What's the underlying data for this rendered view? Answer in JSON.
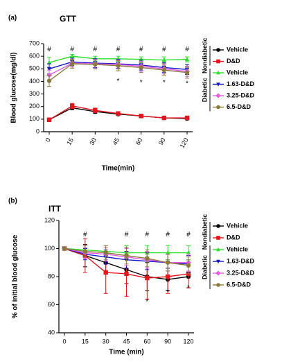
{
  "chart_data": [
    {
      "type": "line",
      "panel": "(a)",
      "title": "GTT",
      "x_label": "Time(min)",
      "y_label": "Blood glucose(mg/dl)",
      "categories": [
        "0",
        "15",
        "30",
        "45",
        "60",
        "90",
        "120"
      ],
      "ylim": [
        0,
        700
      ],
      "yticks": [
        0,
        100,
        200,
        300,
        400,
        500,
        600,
        700
      ],
      "legend_groups": [
        "Nondiabetic",
        "Diabetic"
      ],
      "series": [
        {
          "name": "Vehicle",
          "color": "#000000",
          "marker": "circle",
          "values": [
            95,
            190,
            160,
            140,
            125,
            110,
            105
          ],
          "errors": [
            8,
            15,
            15,
            12,
            12,
            8,
            10
          ]
        },
        {
          "name": "D&D",
          "color": "#e8141c",
          "marker": "square",
          "values": [
            95,
            205,
            170,
            145,
            125,
            110,
            110
          ],
          "errors": [
            8,
            20,
            18,
            15,
            12,
            8,
            12
          ]
        },
        {
          "name": "Vehicle",
          "color": "#2be02b",
          "marker": "triangle-up",
          "values": [
            550,
            600,
            580,
            580,
            575,
            570,
            575
          ],
          "errors": [
            40,
            15,
            20,
            20,
            20,
            25,
            20
          ]
        },
        {
          "name": "1.63-D&D",
          "color": "#1414c8",
          "marker": "triangle-down",
          "values": [
            500,
            555,
            545,
            540,
            530,
            510,
            495
          ],
          "errors": [
            40,
            30,
            35,
            35,
            40,
            40,
            40
          ]
        },
        {
          "name": "3.25-D&D",
          "color": "#e65ce6",
          "marker": "diamond",
          "values": [
            450,
            545,
            540,
            535,
            520,
            500,
            480
          ],
          "errors": [
            40,
            30,
            35,
            35,
            40,
            40,
            40
          ]
        },
        {
          "name": "6.5-D&D",
          "color": "#8c7a3c",
          "marker": "circle",
          "values": [
            405,
            540,
            535,
            525,
            510,
            490,
            470
          ],
          "errors": [
            45,
            35,
            35,
            40,
            40,
            40,
            45
          ]
        }
      ],
      "annotations": [
        {
          "text": "#",
          "x": "0",
          "y": 655
        },
        {
          "text": "#",
          "x": "15",
          "y": 655
        },
        {
          "text": "#",
          "x": "30",
          "y": 655
        },
        {
          "text": "#",
          "x": "45",
          "y": 655
        },
        {
          "text": "#",
          "x": "60",
          "y": 655
        },
        {
          "text": "#",
          "x": "90",
          "y": 655
        },
        {
          "text": "#",
          "x": "120",
          "y": 655
        },
        {
          "text": "*",
          "x": "45",
          "y": 400
        },
        {
          "text": "*",
          "x": "60",
          "y": 390
        },
        {
          "text": "*",
          "x": "90",
          "y": 390
        },
        {
          "text": "*",
          "x": "120",
          "y": 380
        }
      ]
    },
    {
      "type": "line",
      "panel": "(b)",
      "title": "ITT",
      "x_label": "Time (min)",
      "y_label": "% of initial blood glucose",
      "categories": [
        "0",
        "15",
        "30",
        "45",
        "60",
        "90",
        "120"
      ],
      "ylim": [
        40,
        120
      ],
      "yticks": [
        40,
        60,
        80,
        100,
        120
      ],
      "legend_groups": [
        "Nondiabetic",
        "Diabetic"
      ],
      "series": [
        {
          "name": "Vehicle",
          "color": "#000000",
          "marker": "circle",
          "values": [
            100,
            95,
            90,
            85,
            80,
            78,
            80
          ],
          "errors": [
            0,
            8,
            8,
            10,
            10,
            8,
            8
          ]
        },
        {
          "name": "D&D",
          "color": "#e8141c",
          "marker": "square",
          "values": [
            100,
            95,
            83,
            82,
            79,
            80,
            82
          ],
          "errors": [
            0,
            12,
            15,
            16,
            15,
            12,
            10
          ]
        },
        {
          "name": "Vehicle",
          "color": "#2be02b",
          "marker": "triangle-up",
          "values": [
            100,
            99,
            98,
            97,
            97,
            97,
            97
          ],
          "errors": [
            0,
            3,
            4,
            5,
            5,
            5,
            5
          ]
        },
        {
          "name": "1.63-D&D",
          "color": "#1414c8",
          "marker": "triangle-down",
          "values": [
            100,
            96,
            94,
            92,
            91,
            90,
            89
          ],
          "errors": [
            0,
            4,
            5,
            6,
            6,
            6,
            6
          ]
        },
        {
          "name": "3.25-D&D",
          "color": "#e65ce6",
          "marker": "diamond",
          "values": [
            100,
            97,
            96,
            94,
            92,
            90,
            90
          ],
          "errors": [
            0,
            4,
            5,
            6,
            6,
            6,
            6
          ]
        },
        {
          "name": "6.5-D&D",
          "color": "#8c7a3c",
          "marker": "circle",
          "values": [
            100,
            98,
            97,
            95,
            93,
            90,
            88
          ],
          "errors": [
            0,
            4,
            5,
            6,
            6,
            6,
            6
          ]
        }
      ],
      "annotations": [
        {
          "text": "#",
          "x": "15",
          "y": 110
        },
        {
          "text": "#",
          "x": "45",
          "y": 110
        },
        {
          "text": "#",
          "x": "60",
          "y": 110
        },
        {
          "text": "#",
          "x": "90",
          "y": 110
        },
        {
          "text": "#",
          "x": "120",
          "y": 110
        },
        {
          "text": "*",
          "x": "60",
          "y": 62
        },
        {
          "text": "*",
          "x": "90",
          "y": 69
        },
        {
          "text": "*",
          "x": "120",
          "y": 72
        }
      ]
    }
  ]
}
